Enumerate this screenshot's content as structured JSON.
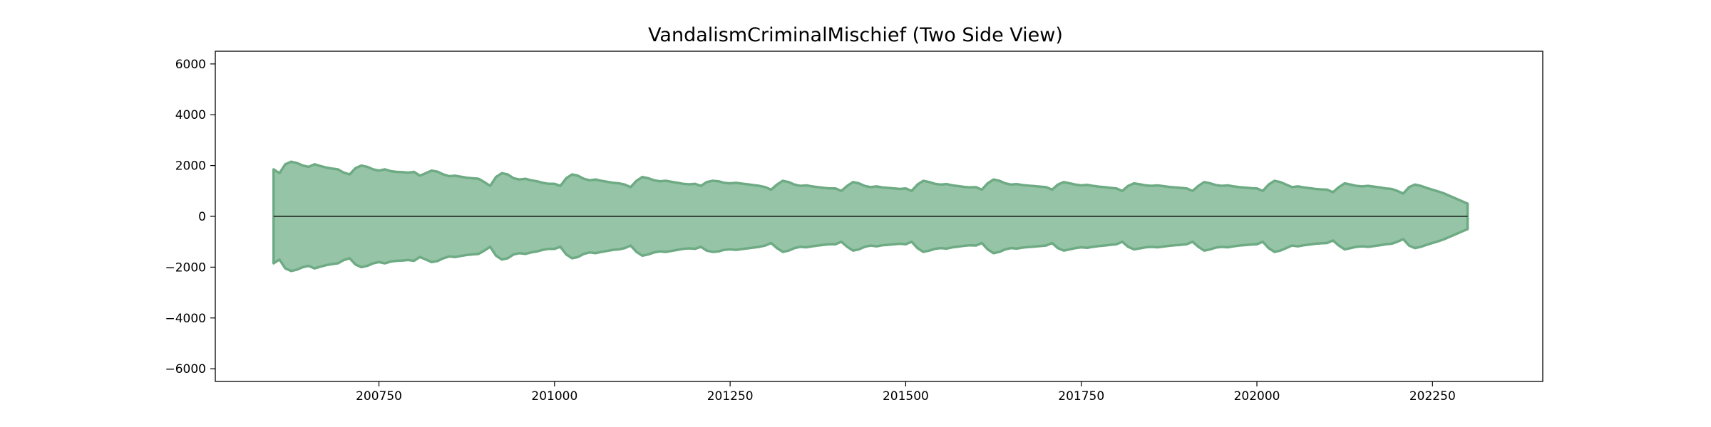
{
  "chart_data": {
    "type": "area",
    "title": "VandalismCriminalMischief (Two Side View)",
    "xlabel": "",
    "ylabel": "",
    "xlim": [
      200517,
      202407
    ],
    "ylim": [
      -6500,
      6500
    ],
    "xticks": [
      200750,
      201000,
      201250,
      201500,
      201750,
      202000,
      202250
    ],
    "yticks": [
      -6000,
      -4000,
      -2000,
      0,
      2000,
      4000,
      6000
    ],
    "grid": false,
    "colors": {
      "fill": "#95c4a6",
      "edge": "#6eab84",
      "zero_line": "#000000",
      "frame": "#000000"
    },
    "series": [
      {
        "mirrored": true,
        "x": [
          200601,
          200602,
          200603,
          200604,
          200605,
          200606,
          200607,
          200608,
          200609,
          200610,
          200611,
          200612,
          200701,
          200702,
          200703,
          200704,
          200705,
          200706,
          200707,
          200708,
          200709,
          200710,
          200711,
          200712,
          200801,
          200802,
          200803,
          200804,
          200805,
          200806,
          200807,
          200808,
          200809,
          200810,
          200811,
          200812,
          200901,
          200902,
          200903,
          200904,
          200905,
          200906,
          200907,
          200908,
          200909,
          200910,
          200911,
          200912,
          201001,
          201002,
          201003,
          201004,
          201005,
          201006,
          201007,
          201008,
          201009,
          201010,
          201011,
          201012,
          201101,
          201102,
          201103,
          201104,
          201105,
          201106,
          201107,
          201108,
          201109,
          201110,
          201111,
          201112,
          201201,
          201202,
          201203,
          201204,
          201205,
          201206,
          201207,
          201208,
          201209,
          201210,
          201211,
          201212,
          201301,
          201302,
          201303,
          201304,
          201305,
          201306,
          201307,
          201308,
          201309,
          201310,
          201311,
          201312,
          201401,
          201402,
          201403,
          201404,
          201405,
          201406,
          201407,
          201408,
          201409,
          201410,
          201411,
          201412,
          201501,
          201502,
          201503,
          201504,
          201505,
          201506,
          201507,
          201508,
          201509,
          201510,
          201511,
          201512,
          201601,
          201602,
          201603,
          201604,
          201605,
          201606,
          201607,
          201608,
          201609,
          201610,
          201611,
          201612,
          201701,
          201702,
          201703,
          201704,
          201705,
          201706,
          201707,
          201708,
          201709,
          201710,
          201711,
          201712,
          201801,
          201802,
          201803,
          201804,
          201805,
          201806,
          201807,
          201808,
          201809,
          201810,
          201811,
          201812,
          201901,
          201902,
          201903,
          201904,
          201905,
          201906,
          201907,
          201908,
          201909,
          201910,
          201911,
          201912,
          202001,
          202002,
          202003,
          202004,
          202005,
          202006,
          202007,
          202008,
          202009,
          202010,
          202011,
          202012,
          202101,
          202102,
          202103,
          202104,
          202105,
          202106,
          202107,
          202108,
          202109,
          202110,
          202111,
          202112,
          202201,
          202202,
          202203,
          202204,
          202205,
          202206,
          202207,
          202208,
          202209,
          202210,
          202211,
          202212,
          202301
        ],
        "values": [
          1850,
          1700,
          2050,
          2150,
          2100,
          2000,
          1950,
          2050,
          1980,
          1920,
          1880,
          1850,
          1720,
          1650,
          1900,
          2000,
          1950,
          1850,
          1800,
          1850,
          1780,
          1750,
          1740,
          1720,
          1750,
          1600,
          1700,
          1800,
          1760,
          1650,
          1580,
          1600,
          1560,
          1520,
          1500,
          1480,
          1350,
          1200,
          1550,
          1700,
          1650,
          1500,
          1450,
          1480,
          1420,
          1380,
          1320,
          1280,
          1280,
          1200,
          1500,
          1650,
          1600,
          1480,
          1420,
          1450,
          1400,
          1360,
          1320,
          1300,
          1250,
          1150,
          1400,
          1550,
          1500,
          1420,
          1380,
          1400,
          1360,
          1320,
          1280,
          1260,
          1280,
          1200,
          1350,
          1400,
          1380,
          1320,
          1300,
          1320,
          1290,
          1260,
          1230,
          1200,
          1150,
          1050,
          1250,
          1400,
          1350,
          1250,
          1200,
          1220,
          1180,
          1150,
          1120,
          1100,
          1100,
          1000,
          1200,
          1350,
          1300,
          1200,
          1150,
          1180,
          1140,
          1120,
          1100,
          1080,
          1100,
          1000,
          1250,
          1400,
          1350,
          1280,
          1250,
          1270,
          1220,
          1190,
          1160,
          1140,
          1150,
          1050,
          1300,
          1450,
          1400,
          1300,
          1250,
          1270,
          1230,
          1210,
          1190,
          1170,
          1150,
          1050,
          1250,
          1350,
          1300,
          1250,
          1220,
          1240,
          1200,
          1170,
          1150,
          1120,
          1100,
          1000,
          1200,
          1300,
          1260,
          1220,
          1200,
          1220,
          1190,
          1160,
          1140,
          1120,
          1100,
          1000,
          1200,
          1350,
          1300,
          1230,
          1200,
          1220,
          1180,
          1150,
          1130,
          1110,
          1100,
          1000,
          1250,
          1400,
          1350,
          1250,
          1150,
          1180,
          1140,
          1110,
          1080,
          1060,
          1050,
          950,
          1150,
          1300,
          1250,
          1200,
          1180,
          1200,
          1170,
          1140,
          1100,
          1080,
          1000,
          900,
          1150,
          1250,
          1200,
          1120,
          1050,
          980,
          900,
          800,
          700,
          600,
          500
        ]
      }
    ]
  }
}
